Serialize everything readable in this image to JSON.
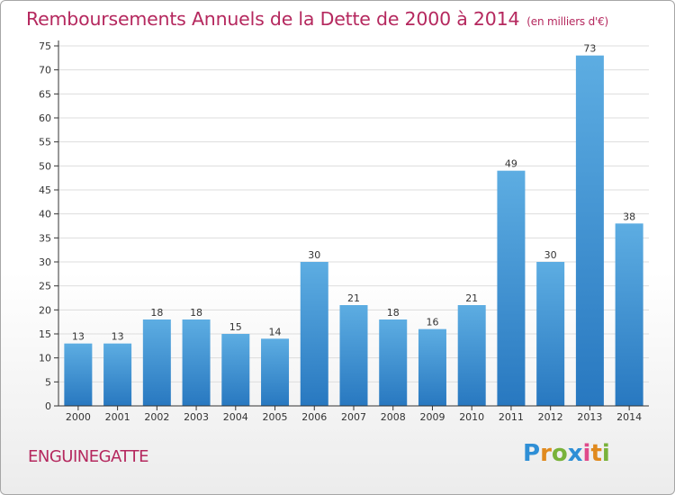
{
  "chart_data": {
    "type": "bar",
    "title": "Remboursements Annuels de la Dette de 2000 à 2014",
    "unit_note": "(en milliers d'€)",
    "categories": [
      "2000",
      "2001",
      "2002",
      "2003",
      "2004",
      "2005",
      "2006",
      "2007",
      "2008",
      "2009",
      "2010",
      "2011",
      "2012",
      "2013",
      "2014"
    ],
    "values": [
      13,
      13,
      18,
      18,
      15,
      14,
      30,
      21,
      18,
      16,
      21,
      49,
      30,
      73,
      38
    ],
    "ylim": [
      0,
      75
    ],
    "yticks": [
      0,
      5,
      10,
      15,
      20,
      25,
      30,
      35,
      40,
      45,
      50,
      55,
      60,
      65,
      70,
      75
    ],
    "grid": true,
    "xlabel": "",
    "ylabel": "",
    "bar_color": "#3d8fd4",
    "bar_color_light": "#5dade2",
    "bar_color_dark": "#2878c0"
  },
  "footer": {
    "commune": "ENGUINEGATTE",
    "logo_letters": [
      "P",
      "r",
      "o",
      "x",
      "i",
      "t",
      "i"
    ]
  },
  "colors": {
    "accent": "#b5285e",
    "grid": "#dddddd",
    "axis": "#333333"
  }
}
